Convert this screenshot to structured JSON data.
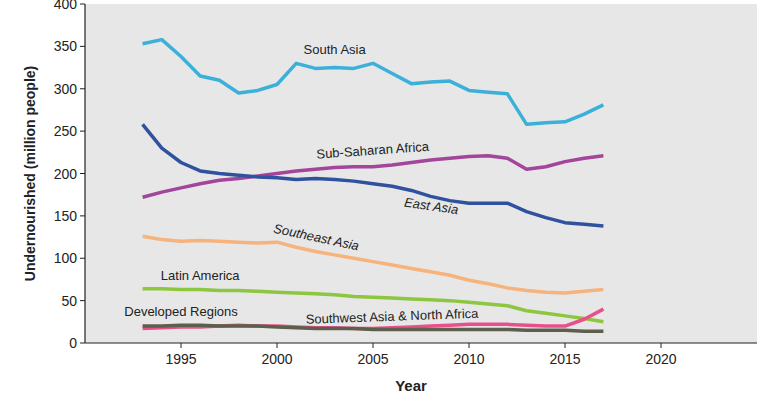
{
  "chart_data": {
    "type": "line",
    "x_label": "Year",
    "y_label": "Undernourished (million people)",
    "x": [
      1993,
      1994,
      1995,
      1996,
      1997,
      1998,
      1999,
      2000,
      2001,
      2002,
      2003,
      2004,
      2005,
      2006,
      2007,
      2008,
      2009,
      2010,
      2011,
      2012,
      2013,
      2014,
      2015,
      2016,
      2017
    ],
    "xlim": [
      1990,
      2025
    ],
    "xticks": [
      1995,
      2000,
      2005,
      2010,
      2015,
      2020
    ],
    "ylim": [
      0,
      400
    ],
    "yticks": [
      0,
      50,
      100,
      150,
      200,
      250,
      300,
      350,
      400
    ],
    "grid": false,
    "series": [
      {
        "name": "South Asia",
        "color": "#3bb0d9",
        "values": [
          353,
          358,
          338,
          315,
          310,
          295,
          298,
          305,
          330,
          324,
          325,
          324,
          330,
          318,
          306,
          308,
          309,
          298,
          296,
          294,
          258,
          260,
          261,
          270,
          281
        ]
      },
      {
        "name": "Sub-Saharan Africa",
        "color": "#a2459b",
        "values": [
          172,
          178,
          183,
          188,
          192,
          194,
          197,
          200,
          203,
          205,
          207,
          208,
          208,
          210,
          213,
          216,
          218,
          220,
          221,
          218,
          205,
          208,
          214,
          218,
          221
        ]
      },
      {
        "name": "East Asia",
        "color": "#2f519e",
        "values": [
          258,
          230,
          213,
          203,
          200,
          198,
          196,
          195,
          193,
          194,
          193,
          191,
          188,
          185,
          180,
          173,
          168,
          165,
          165,
          165,
          155,
          148,
          142,
          140,
          138
        ]
      },
      {
        "name": "Southeast Asia",
        "color": "#f6b37c",
        "values": [
          126,
          122,
          120,
          121,
          120,
          119,
          118,
          119,
          113,
          108,
          104,
          100,
          96,
          92,
          88,
          84,
          80,
          74,
          70,
          65,
          62,
          60,
          59,
          61,
          63
        ]
      },
      {
        "name": "Latin America",
        "color": "#8dc63f",
        "values": [
          64,
          64,
          63,
          63,
          62,
          62,
          61,
          60,
          59,
          58,
          57,
          55,
          54,
          53,
          52,
          51,
          50,
          48,
          46,
          44,
          38,
          35,
          32,
          29,
          25
        ]
      },
      {
        "name": "Southwest Asia & North Africa",
        "color": "#e9508b",
        "values": [
          17,
          18,
          19,
          19,
          20,
          21,
          20,
          20,
          19,
          18,
          18,
          17,
          17,
          18,
          19,
          20,
          21,
          22,
          22,
          22,
          21,
          20,
          20,
          28,
          40
        ]
      },
      {
        "name": "Developed Regions",
        "color": "#5e5e4c",
        "values": [
          20,
          20,
          21,
          21,
          20,
          20,
          20,
          19,
          18,
          17,
          17,
          17,
          16,
          16,
          16,
          16,
          16,
          16,
          16,
          16,
          15,
          15,
          15,
          14,
          14
        ]
      }
    ]
  }
}
